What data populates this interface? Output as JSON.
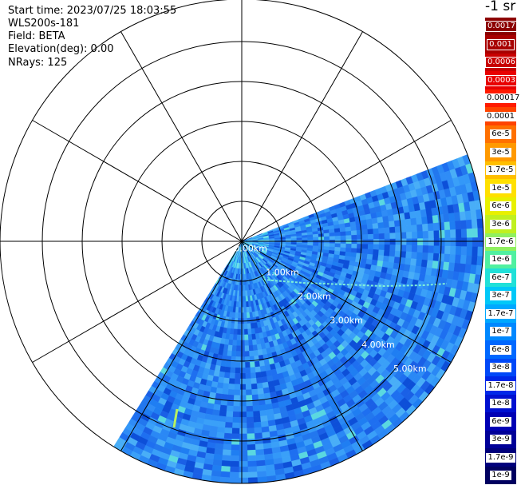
{
  "info": {
    "start_time": "Start time: 2023/07/25 18:03:55",
    "instrument": "WLS200s-181",
    "field": "Field: BETA",
    "elevation": "Elevation(deg): 0.00",
    "nrays": "NRays: 125"
  },
  "colorbar": {
    "unit": "-1 sr",
    "entries": [
      {
        "label": "0.0017",
        "color": "#8c0000"
      },
      {
        "label": "0.001",
        "color": "#a80000"
      },
      {
        "label": "0.0006",
        "color": "#c80000"
      },
      {
        "label": "0.0003",
        "color": "#e80000"
      },
      {
        "label": "0.00017",
        "color": "#ff1a00"
      },
      {
        "label": "0.0001",
        "color": "#ff4400"
      },
      {
        "label": "6e-5",
        "color": "#ff7000"
      },
      {
        "label": "3e-5",
        "color": "#ff9900"
      },
      {
        "label": "1.7e-5",
        "color": "#ffbf00"
      },
      {
        "label": "1e-5",
        "color": "#ffe000"
      },
      {
        "label": "6e-6",
        "color": "#e8f000"
      },
      {
        "label": "3e-6",
        "color": "#c0f020"
      },
      {
        "label": "1.7e-6",
        "color": "#90f060"
      },
      {
        "label": "1e-6",
        "color": "#50f0a0"
      },
      {
        "label": "6e-7",
        "color": "#20e0d8"
      },
      {
        "label": "3e-7",
        "color": "#00c8f8"
      },
      {
        "label": "1.7e-7",
        "color": "#00a8ff"
      },
      {
        "label": "1e-7",
        "color": "#0088ff"
      },
      {
        "label": "6e-8",
        "color": "#0068ff"
      },
      {
        "label": "3e-8",
        "color": "#0048f8"
      },
      {
        "label": "1.7e-8",
        "color": "#0028e8"
      },
      {
        "label": "1e-8",
        "color": "#0010d0"
      },
      {
        "label": "6e-9",
        "color": "#0000b4"
      },
      {
        "label": "3e-9",
        "color": "#000098"
      },
      {
        "label": "1.7e-9",
        "color": "#00007c"
      },
      {
        "label": "1e-9",
        "color": "#000060"
      }
    ]
  },
  "rings": {
    "labels": [
      "0.00km",
      "1.00km",
      "2.00km",
      "3.00km",
      "4.00km",
      "5.00km"
    ]
  }
}
